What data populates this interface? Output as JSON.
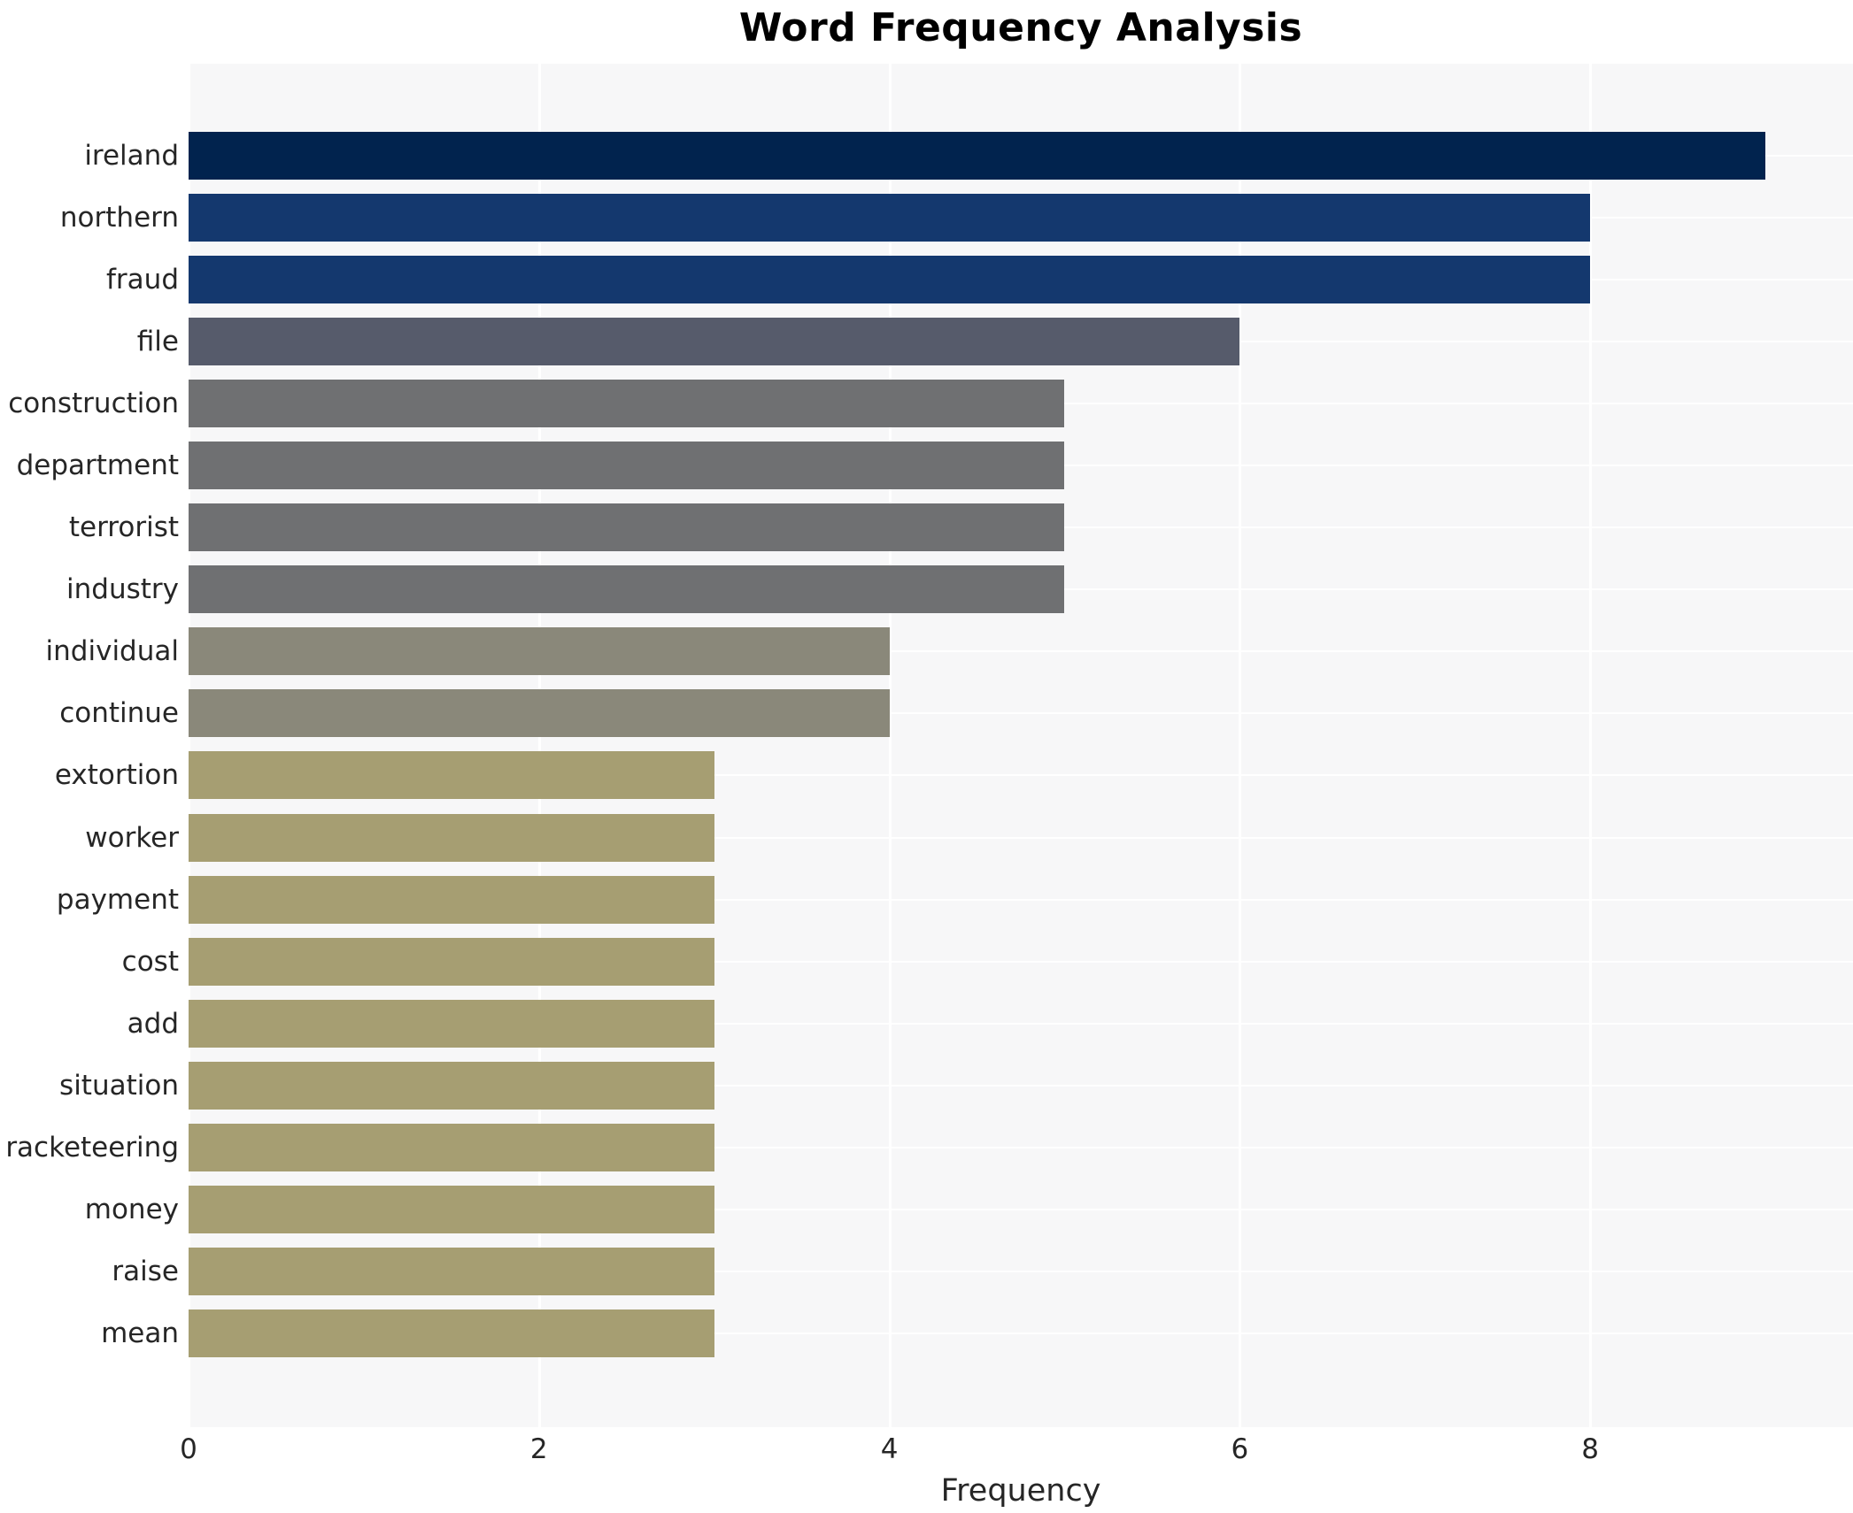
{
  "title": "Word Frequency Analysis",
  "chart_data": {
    "type": "bar",
    "orientation": "horizontal",
    "title": "Word Frequency Analysis",
    "xlabel": "Frequency",
    "ylabel": "",
    "categories": [
      "ireland",
      "northern",
      "fraud",
      "file",
      "construction",
      "department",
      "terrorist",
      "industry",
      "individual",
      "continue",
      "extortion",
      "worker",
      "payment",
      "cost",
      "add",
      "situation",
      "racketeering",
      "money",
      "raise",
      "mean"
    ],
    "values": [
      9,
      8,
      8,
      6,
      5,
      5,
      5,
      5,
      4,
      4,
      3,
      3,
      3,
      3,
      3,
      3,
      3,
      3,
      3,
      3
    ],
    "xlim": [
      0,
      9.5
    ],
    "xticks": [
      0,
      2,
      4,
      6,
      8
    ],
    "grid": true,
    "legend": false,
    "bar_colors_by_value": {
      "9": "#01234e",
      "8": "#14386e",
      "6": "#565b6b",
      "5": "#6f7072",
      "4": "#8a887a",
      "3": "#a69e72"
    },
    "plot_background": "#f7f7f8",
    "grid_color": "#ffffff",
    "text_color": "#262626",
    "title_color": "#000000"
  }
}
